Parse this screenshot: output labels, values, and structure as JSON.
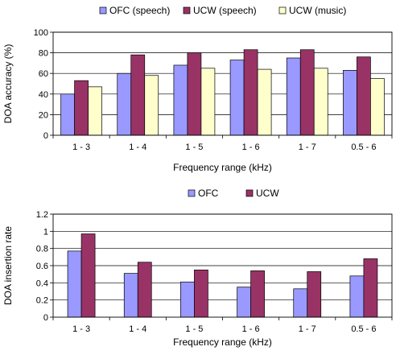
{
  "chart_data": [
    {
      "type": "bar",
      "categories": [
        "1 - 3",
        "1 - 4",
        "1 - 5",
        "1 - 6",
        "1 - 7",
        "0.5 - 6"
      ],
      "series": [
        {
          "name": "OFC (speech)",
          "color": "#9999ff",
          "values": [
            40,
            60,
            68,
            73,
            75,
            63
          ]
        },
        {
          "name": "UCW (speech)",
          "color": "#993366",
          "values": [
            53,
            78,
            80,
            83,
            83,
            76
          ]
        },
        {
          "name": "UCW (music)",
          "color": "#ffffcc",
          "values": [
            47,
            58,
            65,
            64,
            65,
            55
          ]
        }
      ],
      "xlabel": "Frequency range (kHz)",
      "ylabel": "DOA accuracy (%)",
      "ylim": [
        0,
        100
      ],
      "yticks": [
        "0",
        "20",
        "40",
        "60",
        "80",
        "100"
      ],
      "legend": "top",
      "grid": "horizontal"
    },
    {
      "type": "bar",
      "categories": [
        "1 - 3",
        "1 - 4",
        "1 - 5",
        "1 - 6",
        "1 - 7",
        "0.5 - 6"
      ],
      "series": [
        {
          "name": "OFC",
          "color": "#9999ff",
          "values": [
            0.77,
            0.51,
            0.41,
            0.35,
            0.33,
            0.48
          ]
        },
        {
          "name": "UCW",
          "color": "#993366",
          "values": [
            0.97,
            0.64,
            0.55,
            0.54,
            0.53,
            0.68
          ]
        }
      ],
      "xlabel": "Frequency range (kHz)",
      "ylabel": "DOA insertion rate",
      "ylim": [
        0,
        1.2
      ],
      "yticks": [
        "0",
        "0.2",
        "0.4",
        "0.6",
        "0.8",
        "1",
        "1.2"
      ],
      "legend": "top",
      "grid": "horizontal"
    }
  ]
}
